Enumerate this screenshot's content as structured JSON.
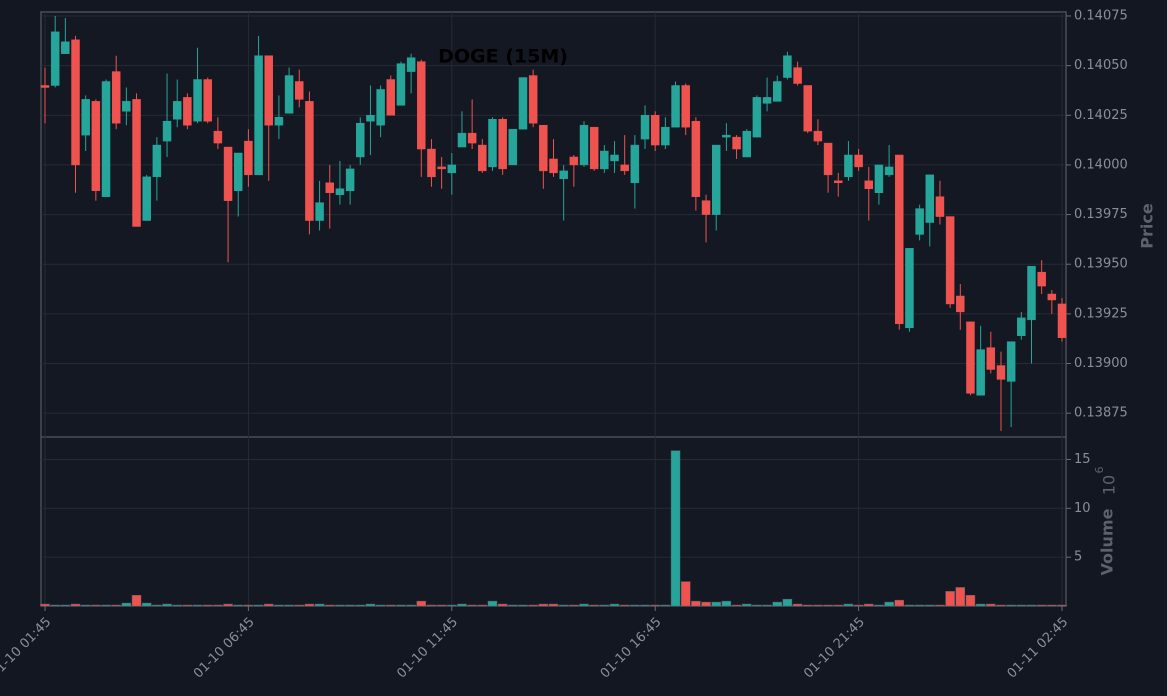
{
  "chart_data": {
    "type": "candlestick",
    "title": "DOGE (15M)",
    "categories": [
      "01-10 01:45",
      null,
      null,
      null,
      null,
      null,
      null,
      null,
      null,
      null,
      null,
      null,
      null,
      null,
      null,
      null,
      null,
      null,
      null,
      null,
      "01-10 06:45",
      null,
      null,
      null,
      null,
      null,
      null,
      null,
      null,
      null,
      null,
      null,
      null,
      null,
      null,
      null,
      null,
      null,
      null,
      null,
      "01-10 11:45",
      null,
      null,
      null,
      null,
      null,
      null,
      null,
      null,
      null,
      null,
      null,
      null,
      null,
      null,
      null,
      null,
      null,
      null,
      null,
      "01-10 16:45",
      null,
      null,
      null,
      null,
      null,
      null,
      null,
      null,
      null,
      null,
      null,
      null,
      null,
      null,
      null,
      null,
      null,
      null,
      null,
      "01-10 21:45",
      null,
      null,
      null,
      null,
      null,
      null,
      null,
      null,
      null,
      null,
      null,
      null,
      null,
      null,
      null,
      null,
      null,
      null,
      null,
      "01-11 02:45"
    ],
    "open": [
      0.1404,
      0.1404,
      0.14056,
      0.14063,
      0.14015,
      0.14032,
      0.13984,
      0.14047,
      0.14027,
      0.14033,
      0.13972,
      0.13994,
      0.14012,
      0.14023,
      0.14034,
      0.14022,
      0.14043,
      0.14017,
      0.14009,
      0.13987,
      0.14012,
      0.13995,
      0.14055,
      0.1402,
      0.14026,
      0.14042,
      0.14032,
      0.13972,
      0.13991,
      0.13985,
      0.13987,
      0.14004,
      0.14022,
      0.1402,
      0.14043,
      0.1403,
      0.14047,
      0.14052,
      0.14008,
      0.13999,
      0.13996,
      0.14009,
      0.14016,
      0.1401,
      0.13999,
      0.14023,
      0.14,
      0.14018,
      0.14045,
      0.1402,
      0.14003,
      0.13993,
      0.14004,
      0.14,
      0.14019,
      0.13998,
      0.14002,
      0.14,
      0.13991,
      0.14013,
      0.14025,
      0.1401,
      0.14019,
      0.1404,
      0.14022,
      0.13982,
      0.13975,
      0.14014,
      0.14014,
      0.14004,
      0.14014,
      0.14031,
      0.14032,
      0.14044,
      0.14049,
      0.1404,
      0.14017,
      0.14011,
      0.13992,
      0.13994,
      0.14005,
      0.13992,
      0.13986,
      0.13995,
      0.14005,
      0.13918,
      0.13965,
      0.13971,
      0.13984,
      0.13974,
      0.13934,
      0.13921,
      0.13884,
      0.13908,
      0.13899,
      0.13891,
      0.13914,
      0.13922,
      0.13946,
      0.13935,
      0.1393
    ],
    "high": [
      0.14049,
      0.14075,
      0.14074,
      0.14065,
      0.14035,
      0.14033,
      0.14043,
      0.14055,
      0.14039,
      0.14036,
      0.13995,
      0.14014,
      0.14046,
      0.14043,
      0.14036,
      0.14059,
      0.14044,
      0.14024,
      0.14009,
      0.14006,
      0.14018,
      0.14065,
      0.14055,
      0.14035,
      0.14049,
      0.14048,
      0.14037,
      0.13992,
      0.14,
      0.14002,
      0.14,
      0.14024,
      0.1404,
      0.1404,
      0.14045,
      0.14052,
      0.14056,
      0.14053,
      0.14013,
      0.14004,
      0.14006,
      0.14027,
      0.14033,
      0.14013,
      0.14024,
      0.14024,
      0.14018,
      0.14044,
      0.14048,
      0.1402,
      0.14013,
      0.14,
      0.14005,
      0.14022,
      0.14019,
      0.1401,
      0.14012,
      0.14015,
      0.14015,
      0.1403,
      0.14027,
      0.14024,
      0.14042,
      0.14041,
      0.14024,
      0.13985,
      0.1401,
      0.14021,
      0.14015,
      0.14018,
      0.14035,
      0.14044,
      0.14045,
      0.14057,
      0.14052,
      0.1404,
      0.14023,
      0.14011,
      0.13996,
      0.14012,
      0.14008,
      0.13999,
      0.14,
      0.1401,
      0.14005,
      0.13958,
      0.1398,
      0.13995,
      0.13992,
      0.13974,
      0.1394,
      0.13921,
      0.13919,
      0.13916,
      0.13906,
      0.13911,
      0.13926,
      0.13949,
      0.13952,
      0.13937,
      0.13933
    ],
    "low": [
      0.14021,
      0.14039,
      0.14056,
      0.13986,
      0.14007,
      0.13982,
      0.13984,
      0.14018,
      0.1402,
      0.13969,
      0.13972,
      0.13982,
      0.14004,
      0.14019,
      0.14018,
      0.14021,
      0.14021,
      0.14008,
      0.13951,
      0.13974,
      0.13989,
      0.13995,
      0.13992,
      0.14013,
      0.14026,
      0.14029,
      0.13965,
      0.13967,
      0.13968,
      0.1398,
      0.1398,
      0.14,
      0.14005,
      0.14014,
      0.14025,
      0.1403,
      0.14036,
      0.13994,
      0.13989,
      0.13988,
      0.13985,
      0.14009,
      0.14008,
      0.13996,
      0.13997,
      0.13995,
      0.14,
      0.14018,
      0.14019,
      0.13988,
      0.13994,
      0.13972,
      0.13989,
      0.13999,
      0.13997,
      0.13996,
      0.13996,
      0.13995,
      0.13978,
      0.14008,
      0.14007,
      0.14008,
      0.14019,
      0.14015,
      0.13977,
      0.13961,
      0.13967,
      0.14007,
      0.14003,
      0.14004,
      0.14014,
      0.14027,
      0.14032,
      0.14043,
      0.1404,
      0.14016,
      0.1401,
      0.13986,
      0.13984,
      0.13992,
      0.13997,
      0.13972,
      0.1398,
      0.13994,
      0.13917,
      0.13916,
      0.13962,
      0.13959,
      0.1397,
      0.13928,
      0.13917,
      0.13884,
      0.13884,
      0.13895,
      0.13866,
      0.13868,
      0.13912,
      0.139,
      0.13935,
      0.13925,
      0.13911
    ],
    "close": [
      0.14039,
      0.14067,
      0.14062,
      0.14,
      0.14033,
      0.13987,
      0.14042,
      0.14021,
      0.14032,
      0.13969,
      0.13994,
      0.1401,
      0.14022,
      0.14032,
      0.1402,
      0.14043,
      0.14022,
      0.14011,
      0.13982,
      0.14006,
      0.13995,
      0.14055,
      0.1402,
      0.14024,
      0.14045,
      0.14033,
      0.13972,
      0.13981,
      0.13986,
      0.13988,
      0.13998,
      0.14021,
      0.14025,
      0.14038,
      0.14025,
      0.14051,
      0.14054,
      0.14008,
      0.13994,
      0.13998,
      0.14,
      0.14016,
      0.14011,
      0.13997,
      0.14023,
      0.13998,
      0.14018,
      0.14044,
      0.14021,
      0.13997,
      0.13996,
      0.13997,
      0.14,
      0.1402,
      0.13998,
      0.14007,
      0.14005,
      0.13997,
      0.1401,
      0.14025,
      0.1401,
      0.14019,
      0.1404,
      0.14019,
      0.13984,
      0.13975,
      0.1401,
      0.14015,
      0.14008,
      0.14017,
      0.14034,
      0.14034,
      0.14042,
      0.14055,
      0.14041,
      0.14017,
      0.14012,
      0.13995,
      0.13991,
      0.14005,
      0.13999,
      0.13988,
      0.14,
      0.13999,
      0.1392,
      0.13958,
      0.13978,
      0.13995,
      0.13974,
      0.1393,
      0.13926,
      0.13885,
      0.13907,
      0.13897,
      0.13892,
      0.13911,
      0.13923,
      0.13949,
      0.13939,
      0.13932,
      0.13913
    ],
    "volume": [
      0.2,
      0.1,
      0.1,
      0.2,
      0.1,
      0.1,
      0.1,
      0.1,
      0.3,
      1.1,
      0.3,
      0.1,
      0.2,
      0.1,
      0.1,
      0.1,
      0.1,
      0.1,
      0.2,
      0.1,
      0.1,
      0.1,
      0.2,
      0.1,
      0.1,
      0.1,
      0.2,
      0.2,
      0.1,
      0.1,
      0.1,
      0.1,
      0.2,
      0.1,
      0.1,
      0.1,
      0.1,
      0.5,
      0.1,
      0.1,
      0.1,
      0.2,
      0.1,
      0.1,
      0.5,
      0.2,
      0.1,
      0.1,
      0.1,
      0.2,
      0.2,
      0.1,
      0.1,
      0.2,
      0.1,
      0.1,
      0.2,
      0.1,
      0.1,
      0.1,
      0.1,
      0.1,
      15.9,
      2.5,
      0.5,
      0.4,
      0.4,
      0.5,
      0.1,
      0.2,
      0.1,
      0.1,
      0.4,
      0.7,
      0.2,
      0.1,
      0.1,
      0.1,
      0.1,
      0.2,
      0.1,
      0.2,
      0.1,
      0.4,
      0.6,
      0.1,
      0.1,
      0.1,
      0.1,
      1.5,
      1.9,
      1.1,
      0.2,
      0.2,
      0.1,
      0.1,
      0.1,
      0.1,
      0.1,
      0.1,
      0.1
    ],
    "up_color": "#26a69a",
    "down_color": "#ef5350",
    "ylabel": "Price",
    "ylim": [
      0.13863,
      0.14077
    ],
    "yticks": [
      0.14075,
      {
        "value": 0.1405,
        "label": "0.14050"
      },
      0.14025,
      {
        "value": 0.14,
        "label": "0.14000"
      },
      0.13975,
      {
        "value": 0.1395,
        "label": "0.13950"
      },
      0.13925,
      {
        "value": 0.139,
        "label": "0.13900"
      },
      0.13875
    ],
    "volume_label": "Volume",
    "volume_multiplier": "10",
    "volume_exponent": "6",
    "volume_ylim": [
      0,
      17.3
    ],
    "volume_yticks": [
      5,
      10,
      15
    ],
    "grid": true
  }
}
